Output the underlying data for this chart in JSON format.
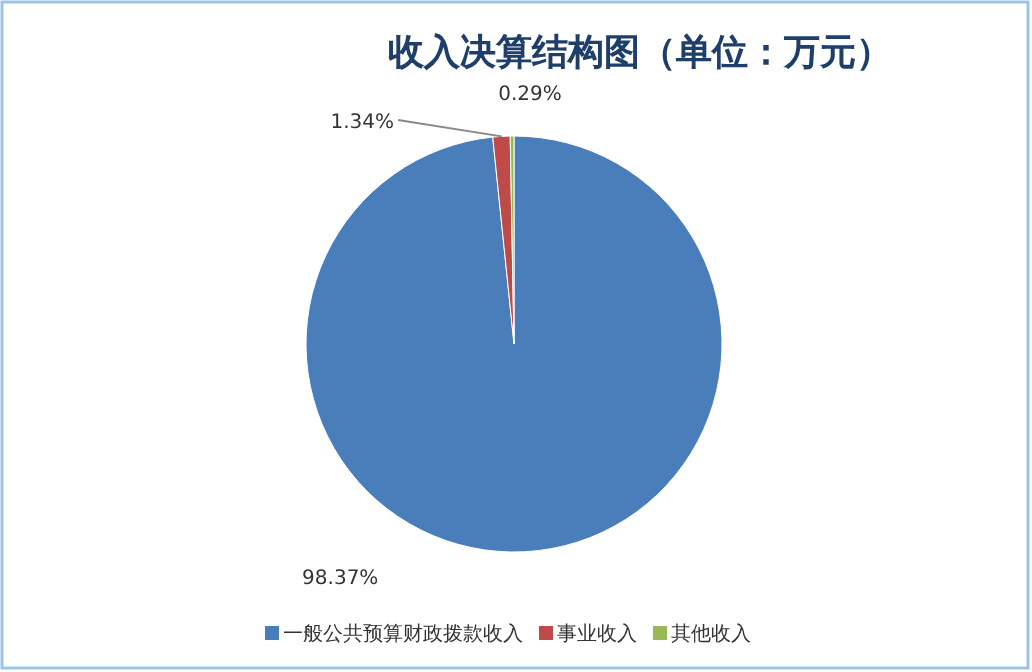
{
  "chart_data": {
    "type": "pie",
    "title": "收入决算结构图（单位：万元）",
    "categories": [
      "一般公共预算财政拨款收入",
      "事业收入",
      "其他收入"
    ],
    "values": [
      98.37,
      1.34,
      0.29
    ],
    "colors": [
      "#4a7ebb",
      "#be4b48",
      "#98b954"
    ],
    "value_labels": [
      "98.37%",
      "1.34%",
      "0.29%"
    ],
    "legend": "bottom"
  }
}
